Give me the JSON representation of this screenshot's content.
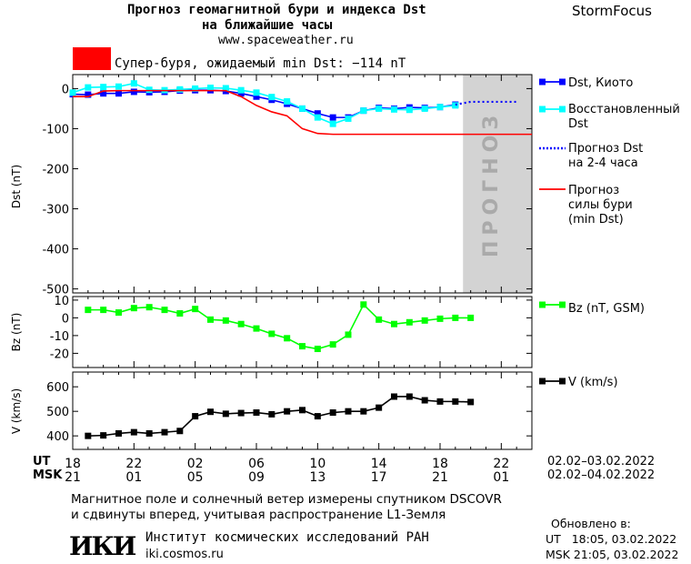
{
  "header": {
    "title_line1": "Прогноз геомагнитной бури и индекса Dst",
    "title_line2": "на ближайшие часы",
    "site": "www.spaceweather.ru",
    "brand": "StormFocus"
  },
  "alert": {
    "text": "Супер-буря, ожидаемый min Dst: −114 nT",
    "color": "#ff0000"
  },
  "chart_data": [
    {
      "type": "line",
      "ylabel": "Dst (nT)",
      "ylim": [
        -510,
        35
      ],
      "yticks": [
        0,
        -100,
        -200,
        -300,
        -400,
        -500
      ],
      "x_hours": [
        18,
        19,
        20,
        21,
        22,
        23,
        24,
        25,
        26,
        27,
        28,
        29,
        30,
        31,
        32,
        33,
        34,
        35,
        36,
        37,
        38,
        39,
        40,
        41,
        42,
        43
      ],
      "series": [
        {
          "name": "Dst, Киото",
          "color": "#0000ff",
          "marker": "square",
          "x": [
            18,
            19,
            20,
            21,
            22,
            23,
            24,
            25,
            26,
            27,
            28,
            29,
            30,
            31,
            32,
            33,
            34,
            35,
            36,
            37,
            38,
            39,
            40,
            41,
            42,
            43
          ],
          "values": [
            -14,
            -15,
            -12,
            -12,
            -8,
            -9,
            -8,
            -5,
            -4,
            -4,
            -6,
            -12,
            -20,
            -28,
            -38,
            -50,
            -62,
            -72,
            -72,
            -55,
            -48,
            -50,
            -47,
            -48,
            -46,
            -40
          ]
        },
        {
          "name": "Восстановленный Dst",
          "color": "#00ffff",
          "marker": "square",
          "x": [
            18,
            19,
            20,
            21,
            22,
            23,
            24,
            25,
            26,
            27,
            28,
            29,
            30,
            31,
            32,
            33,
            34,
            35,
            36,
            37,
            38,
            39,
            40,
            41,
            42,
            43
          ],
          "values": [
            -10,
            3,
            4,
            5,
            13,
            -3,
            -4,
            -2,
            0,
            2,
            1,
            -4,
            -10,
            -21,
            -32,
            -50,
            -72,
            -88,
            -75,
            -55,
            -50,
            -52,
            -53,
            -50,
            -46,
            -42
          ]
        },
        {
          "name": "Прогноз Dst на 2-4 часа",
          "color": "#0000ff",
          "style": "dotted",
          "x": [
            43,
            44,
            45,
            46,
            47
          ],
          "values": [
            -40,
            -33,
            -33,
            -33,
            -33
          ]
        },
        {
          "name": "Прогноз силы бури (min Dst)",
          "color": "#ff0000",
          "style": "solid",
          "x": [
            18,
            19,
            20,
            21,
            22,
            23,
            24,
            25,
            26,
            27,
            28,
            29,
            30,
            31,
            32,
            33,
            34,
            35,
            36,
            37,
            38,
            39,
            40,
            41,
            42,
            43,
            44,
            45,
            46,
            47,
            48
          ],
          "values": [
            -20,
            -20,
            -6,
            -5,
            -5,
            -5,
            -5,
            -5,
            -5,
            -5,
            -5,
            -20,
            -42,
            -58,
            -68,
            -100,
            -112,
            -114,
            -114,
            -114,
            -114,
            -114,
            -114,
            -114,
            -114,
            -114,
            -114,
            -114,
            -114,
            -114,
            -114
          ]
        }
      ],
      "forecast_band": {
        "x_start": 43.5,
        "x_end": 48,
        "label": "ПРОГНОЗ",
        "color": "#d3d3d3"
      }
    },
    {
      "type": "line",
      "ylabel": "Bz (nT)",
      "ylim": [
        -28,
        12
      ],
      "yticks": [
        10,
        0,
        -10,
        -20
      ],
      "series": [
        {
          "name": "Bz (nT, GSM)",
          "color": "#00ff00",
          "marker": "square",
          "x": [
            19,
            20,
            21,
            22,
            23,
            24,
            25,
            26,
            27,
            28,
            29,
            30,
            31,
            32,
            33,
            34,
            35,
            36,
            37,
            38,
            39,
            40,
            41,
            42,
            43,
            44
          ],
          "values": [
            4.5,
            4.5,
            3,
            5.5,
            6,
            4.5,
            2.5,
            5,
            -1,
            -1.5,
            -3.5,
            -6,
            -9,
            -11.5,
            -16,
            -17.5,
            -15,
            -9.5,
            7.5,
            -1,
            -3.5,
            -2.5,
            -1.5,
            -0.5,
            0,
            0
          ]
        }
      ]
    },
    {
      "type": "line",
      "ylabel": "V (km/s)",
      "ylim": [
        345,
        660
      ],
      "yticks": [
        600,
        500,
        400
      ],
      "series": [
        {
          "name": "V (km/s)",
          "color": "#000000",
          "marker": "square",
          "x": [
            19,
            20,
            21,
            22,
            23,
            24,
            25,
            26,
            27,
            28,
            29,
            30,
            31,
            32,
            33,
            34,
            35,
            36,
            37,
            38,
            39,
            40,
            41,
            42,
            43,
            44
          ],
          "values": [
            400,
            402,
            410,
            415,
            410,
            415,
            420,
            480,
            498,
            490,
            493,
            495,
            488,
            500,
            505,
            480,
            495,
            500,
            500,
            515,
            560,
            560,
            545,
            540,
            540,
            538
          ]
        }
      ]
    }
  ],
  "legend": {
    "dst_kyoto": "Dst, Киото",
    "restored_1": "Восстановленный",
    "restored_2": "Dst",
    "forecast_dst_1": "Прогноз Dst",
    "forecast_dst_2": "на 2-4 часа",
    "forecast_storm_1": "Прогноз",
    "forecast_storm_2": "силы бури",
    "forecast_storm_3": "(min Dst)",
    "bz": "Bz (nT, GSM)",
    "v": "V (km/s)"
  },
  "xaxis": {
    "ut_label": "UT",
    "msk_label": "MSK",
    "ut_ticks": [
      "18",
      "22",
      "02",
      "06",
      "10",
      "14",
      "18",
      "22"
    ],
    "msk_ticks": [
      "21",
      "01",
      "05",
      "09",
      "13",
      "17",
      "21",
      "01"
    ],
    "ut_range": "02.02–03.02.2022",
    "msk_range": "02.02–04.02.2022"
  },
  "footer": {
    "note_line1": "Магнитное поле и солнечный ветер измерены спутником DSCOVR",
    "note_line2": "и сдвинуты вперед, учитывая распространение L1-Земля",
    "institute": "Институт космических исследований РАН",
    "institute_site": "iki.cosmos.ru",
    "logo_text": "ИКИ",
    "updated_label": "Обновлено в:",
    "updated_ut": "UT   18:05, 03.02.2022",
    "updated_msk": "MSK 21:05, 03.02.2022"
  }
}
